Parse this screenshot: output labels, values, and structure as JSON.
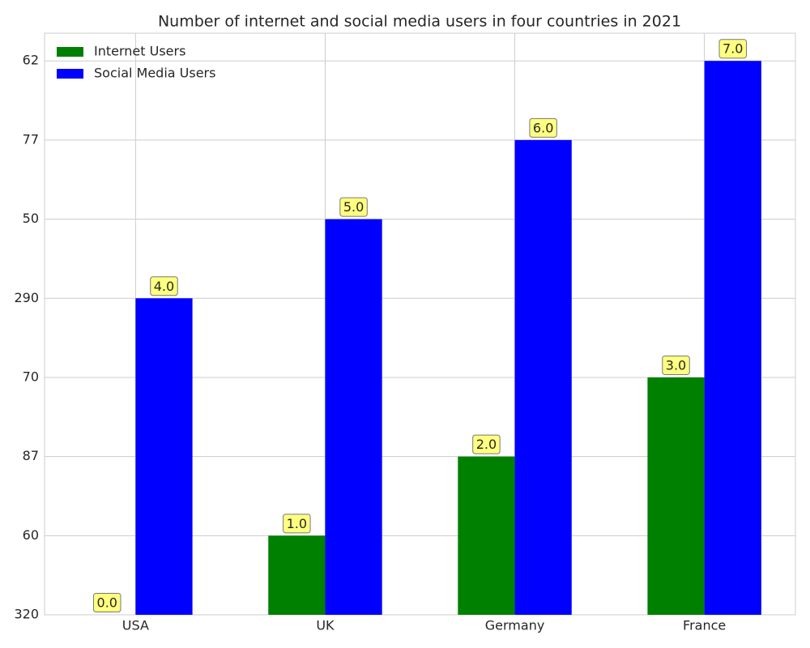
{
  "chart_data": {
    "type": "bar",
    "title": "Number of internet and social media users in four countries in 2021",
    "categories": [
      "USA",
      "UK",
      "Germany",
      "France"
    ],
    "series": [
      {
        "name": "Internet Users",
        "color": "#008000",
        "values": [
          0,
          1,
          2,
          3
        ],
        "value_labels": [
          "0.0",
          "1.0",
          "2.0",
          "3.0"
        ]
      },
      {
        "name": "Social Media Users",
        "color": "#0000ff",
        "values": [
          4,
          5,
          6,
          7
        ],
        "value_labels": [
          "4.0",
          "5.0",
          "6.0",
          "7.0"
        ]
      }
    ],
    "ylim": [
      0,
      7.35
    ],
    "yticks": [
      {
        "value": 0,
        "label": "320"
      },
      {
        "value": 1,
        "label": "60"
      },
      {
        "value": 2,
        "label": "87"
      },
      {
        "value": 3,
        "label": "70"
      },
      {
        "value": 4,
        "label": "290"
      },
      {
        "value": 5,
        "label": "50"
      },
      {
        "value": 6,
        "label": "77"
      },
      {
        "value": 7,
        "label": "62"
      }
    ],
    "grid": true,
    "legend": "upper left"
  }
}
